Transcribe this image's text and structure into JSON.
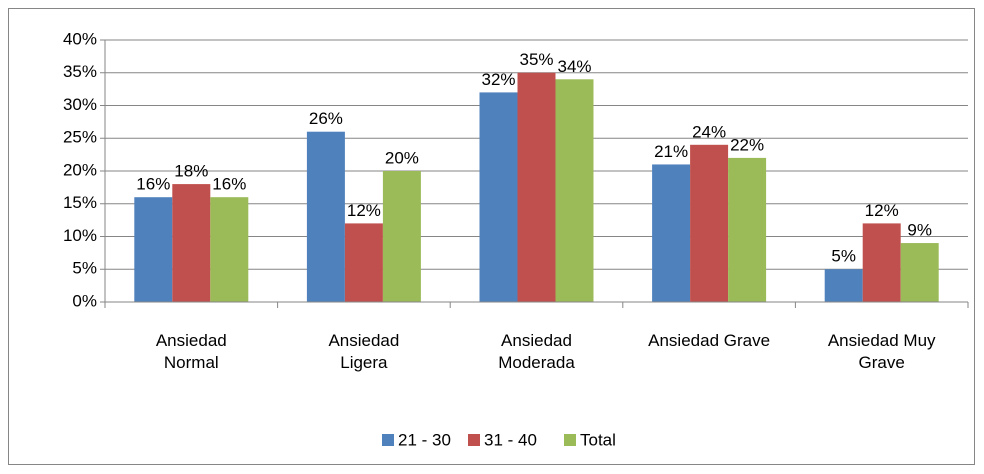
{
  "chart_data": {
    "type": "bar",
    "categories": [
      "Ansiedad Normal",
      "Ansiedad Ligera",
      "Ansiedad Moderada",
      "Ansiedad Grave",
      "Ansiedad Muy Grave"
    ],
    "series": [
      {
        "name": "21 - 30",
        "color": "#4f81bd",
        "values": [
          16,
          26,
          32,
          21,
          5
        ],
        "value_labels": [
          "16%",
          "26%",
          "32%",
          "21%",
          "5%"
        ]
      },
      {
        "name": "31 - 40",
        "color": "#c0504d",
        "values": [
          18,
          12,
          35,
          24,
          12
        ],
        "value_labels": [
          "18%",
          "12%",
          "35%",
          "24%",
          "12%"
        ]
      },
      {
        "name": "Total",
        "color": "#9bbb59",
        "values": [
          16,
          20,
          34,
          22,
          9
        ],
        "value_labels": [
          "16%",
          "20%",
          "34%",
          "22%",
          "9%"
        ]
      }
    ],
    "ylim": [
      0,
      40
    ],
    "yticks": [
      {
        "value": 0,
        "label": "0%"
      },
      {
        "value": 5,
        "label": "5%"
      },
      {
        "value": 10,
        "label": "10%"
      },
      {
        "value": 15,
        "label": "15%"
      },
      {
        "value": 20,
        "label": "20%"
      },
      {
        "value": 25,
        "label": "25%"
      },
      {
        "value": 30,
        "label": "30%"
      },
      {
        "value": 35,
        "label": "35%"
      },
      {
        "value": 40,
        "label": "40%"
      }
    ],
    "grid": true,
    "legend": "bottom"
  }
}
